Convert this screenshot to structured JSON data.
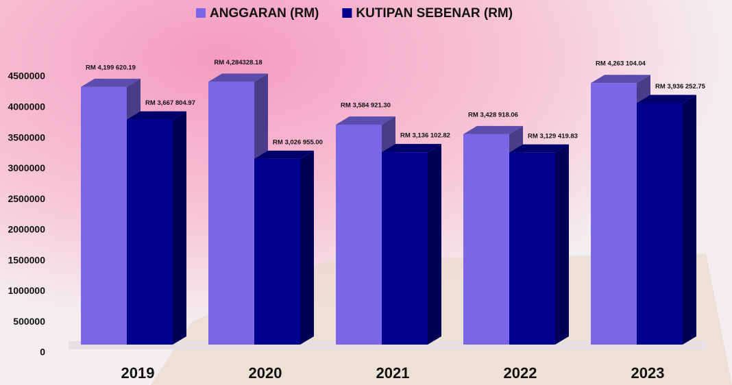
{
  "chart_data": {
    "type": "bar3d",
    "categories": [
      "2019",
      "2020",
      "2021",
      "2022",
      "2023"
    ],
    "series": [
      {
        "name": "ANGGARAN (RM)",
        "color": "#7a66e6",
        "values": [
          4199620.19,
          4284328.18,
          3584921.3,
          3428918.06,
          4263104.04
        ],
        "value_labels": [
          "RM 4,199 620.19",
          "RM 4,284328.18",
          "RM 3,584 921.30",
          "RM 3,428 918.06",
          "RM 4,263 104.04"
        ]
      },
      {
        "name": "KUTIPAN SEBENAR (RM)",
        "color": "#00008f",
        "values": [
          3667804.97,
          3026955.0,
          3136102.82,
          3129419.83,
          3936252.75
        ],
        "value_labels": [
          "RM 3,667 804.97",
          "RM 3,026 955.00",
          "RM 3,136 102.82",
          "RM 3,129 419.83",
          "RM 3,936 252.75"
        ]
      }
    ],
    "ylim": [
      0,
      4500000
    ],
    "yticks": [
      0,
      500000,
      1000000,
      1500000,
      2000000,
      2500000,
      3000000,
      3500000,
      4000000,
      4500000
    ]
  }
}
